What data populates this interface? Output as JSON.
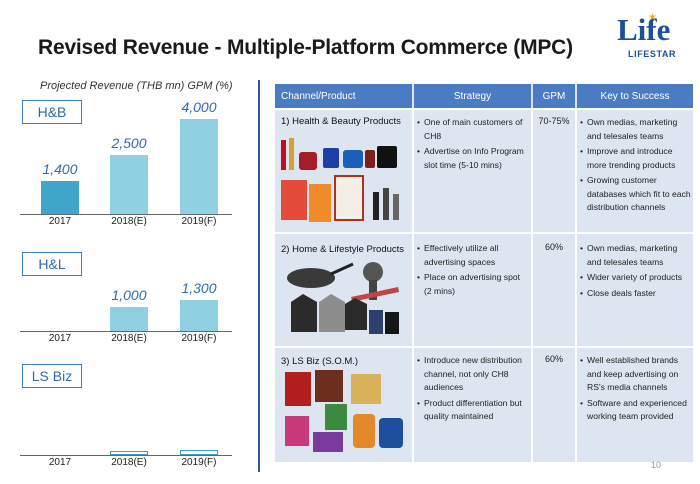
{
  "title": "Revised Revenue - Multiple-Platform Commerce (MPC)",
  "logo": {
    "main": "Life",
    "sub": "LIFESTAR"
  },
  "subtitle": "Projected Revenue (THB mn) GPM (%)",
  "chart_data": [
    {
      "type": "bar",
      "title": "H&B",
      "categories": [
        "2017",
        "2018(E)",
        "2019(F)"
      ],
      "values": [
        1400,
        2500,
        4000
      ],
      "value_labels": [
        "1,400",
        "2,500",
        "4,000"
      ],
      "ylim": [
        0,
        4000
      ]
    },
    {
      "type": "bar",
      "title": "H&L",
      "categories": [
        "2017",
        "2018(E)",
        "2019(F)"
      ],
      "values": [
        0,
        1000,
        1300
      ],
      "value_labels": [
        "",
        "1,000",
        "1,300"
      ],
      "ylim": [
        0,
        4000
      ]
    },
    {
      "type": "bar",
      "title": "LS Biz",
      "categories": [
        "2017",
        "2018(E)",
        "2019(F)"
      ],
      "values": [
        0,
        120,
        200
      ],
      "value_labels": [
        "",
        "",
        ""
      ],
      "ylim": [
        0,
        4000
      ]
    }
  ],
  "table": {
    "headers": [
      "Channel/Product",
      "Strategy",
      "GPM",
      "Key to Success"
    ],
    "rows": [
      {
        "channel": "1)  Health & Beauty Products",
        "strategy": [
          "One of main customers of CH8",
          "Advertise on Info Program slot time (5-10 mins)"
        ],
        "gpm": "70-75%",
        "keys": [
          "Own medias, marketing and telesales teams",
          "Improve and introduce more trending products",
          "Growing customer databases which fit to each distribution channels"
        ]
      },
      {
        "channel": "2) Home & Lifestyle Products",
        "strategy": [
          "Effectively utilize all advertising spaces",
          "Place on advertising spot (2 mins)"
        ],
        "gpm": "60%",
        "keys": [
          "Own medias, marketing and telesales teams",
          "Wider variety of products",
          "Close deals faster"
        ]
      },
      {
        "channel": "3)  LS Biz (S.O.M.)",
        "strategy": [
          "Introduce new distribution channel, not only CH8 audiences",
          "Product differentiation but quality maintained"
        ],
        "gpm": "60%",
        "keys": [
          "Well established brands and keep advertising on RS's media channels",
          "Software and experienced working team provided"
        ]
      }
    ]
  },
  "page_number": "10",
  "colors": {
    "accent": "#2e55a4",
    "header_fill": "#4a7cc4",
    "table_fill": "#dde5f1",
    "bar_dark": "#3fa6c9",
    "bar_light": "#8fd0e3",
    "label_blue": "#2f6ab0"
  }
}
